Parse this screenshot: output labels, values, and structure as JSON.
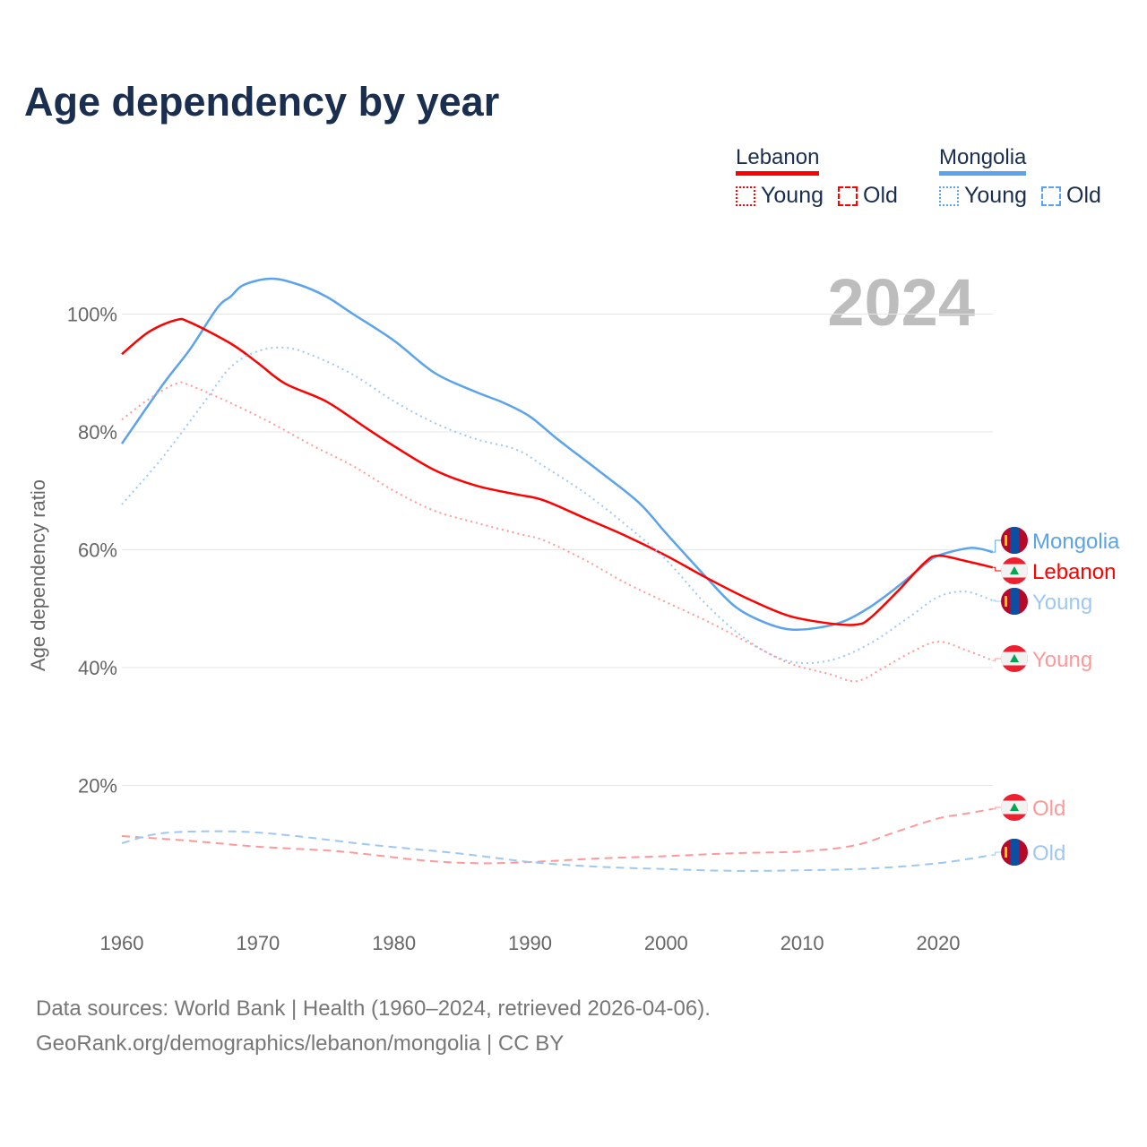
{
  "chart_data": {
    "type": "line",
    "title": "Age dependency by year",
    "xlabel": "",
    "ylabel": "Age dependency ratio",
    "xlim": [
      1960,
      2024
    ],
    "ylim": [
      0,
      110
    ],
    "yticks": [
      20,
      40,
      60,
      80,
      100
    ],
    "ytick_labels": [
      "20%",
      "40%",
      "60%",
      "80%",
      "100%"
    ],
    "xticks": [
      1960,
      1970,
      1980,
      1990,
      2000,
      2010,
      2020
    ],
    "xtick_labels": [
      "1960",
      "1970",
      "1980",
      "1990",
      "2000",
      "2010",
      "2020"
    ],
    "grid": true,
    "year_display": "2024",
    "legend": {
      "placement": "top-right",
      "groups": [
        {
          "country": "Lebanon",
          "color": "#ff0000",
          "items": [
            "Young",
            "Old"
          ]
        },
        {
          "country": "Mongolia",
          "color": "#5ba3ec",
          "items": [
            "Young",
            "Old"
          ]
        }
      ]
    },
    "series": [
      {
        "name": "Mongolia",
        "label": "Mongolia",
        "country": "Mongolia",
        "kind": "total",
        "color": "#5ba3ec",
        "years": [
          1960,
          1963,
          1965,
          1967,
          1968,
          1969,
          1971,
          1973,
          1975,
          1977,
          1980,
          1983,
          1986,
          1988,
          1990,
          1992,
          1995,
          1998,
          2000,
          2003,
          2005,
          2007,
          2009,
          2011,
          2013,
          2015,
          2017,
          2019,
          2020,
          2022,
          2023,
          2024
        ],
        "values": [
          78,
          88,
          94,
          101,
          103,
          105,
          106,
          105,
          103,
          100,
          95.5,
          90,
          86.8,
          85,
          82.6,
          78.8,
          73.5,
          68,
          62.8,
          55.2,
          50.5,
          47.9,
          46.5,
          46.7,
          47.8,
          50.3,
          53.7,
          57.5,
          59,
          60.2,
          60.2,
          59.6
        ]
      },
      {
        "name": "Lebanon",
        "label": "Lebanon",
        "country": "Lebanon",
        "kind": "total",
        "color": "#ff0000",
        "years": [
          1960,
          1962,
          1964,
          1965,
          1968,
          1970,
          1972,
          1975,
          1978,
          1980,
          1983,
          1986,
          1989,
          1991,
          1994,
          1997,
          2000,
          2003,
          2006,
          2009,
          2012,
          2014,
          2015,
          2017,
          2019,
          2020,
          2022,
          2024
        ],
        "values": [
          93.2,
          97,
          99,
          98.6,
          95,
          91.7,
          88.2,
          85.2,
          80.6,
          77.6,
          73.5,
          70.9,
          69.4,
          68.4,
          65.4,
          62.4,
          59,
          55.2,
          51.7,
          48.8,
          47.5,
          47.3,
          48.4,
          52.9,
          57.8,
          59,
          58.1,
          57
        ]
      },
      {
        "name": "Mongolia Young",
        "label": "Young",
        "country": "Mongolia",
        "kind": "young",
        "color": "#9ec8f2",
        "years": [
          1960,
          1963,
          1966,
          1968,
          1970,
          1972,
          1974,
          1977,
          1980,
          1983,
          1986,
          1989,
          1991,
          1994,
          1997,
          2000,
          2003,
          2006,
          2009,
          2012,
          2015,
          2018,
          2020,
          2022,
          2024
        ],
        "values": [
          67.7,
          75.7,
          84.9,
          91,
          93.7,
          94.3,
          93,
          89.7,
          85.2,
          81.5,
          78.8,
          77,
          74.2,
          69.7,
          64.3,
          58.3,
          50.6,
          44.6,
          41.1,
          41.2,
          44.1,
          48.8,
          52,
          52.9,
          51.4
        ]
      },
      {
        "name": "Lebanon Young",
        "label": "Young",
        "country": "Lebanon",
        "kind": "young",
        "color": "#ff9999",
        "years": [
          1960,
          1962,
          1964,
          1965,
          1968,
          1971,
          1974,
          1977,
          1980,
          1983,
          1986,
          1989,
          1991,
          1994,
          1997,
          2000,
          2003,
          2006,
          2009,
          2012,
          2014,
          2016,
          2018,
          2020,
          2022,
          2024
        ],
        "values": [
          82.1,
          85.6,
          88.2,
          87.9,
          84.9,
          81.5,
          77.7,
          74.2,
          70,
          66.6,
          64.6,
          62.8,
          61.6,
          58.3,
          54.4,
          51.1,
          47.9,
          44.3,
          40.8,
          38.9,
          37.7,
          40,
          42.6,
          44.4,
          43,
          41.2
        ]
      },
      {
        "name": "Lebanon Old",
        "label": "Old",
        "country": "Lebanon",
        "kind": "old",
        "color": "#ff9999",
        "years": [
          1960,
          1965,
          1970,
          1976,
          1982,
          1986,
          1990,
          1995,
          2000,
          2005,
          2010,
          2014,
          2017,
          2020,
          2022,
          2024
        ],
        "values": [
          11.4,
          10.6,
          9.6,
          8.8,
          7.3,
          6.8,
          7,
          7.6,
          8,
          8.5,
          8.8,
          9.9,
          12.2,
          14.4,
          15.2,
          16
        ]
      },
      {
        "name": "Mongolia Old",
        "label": "Old",
        "country": "Mongolia",
        "kind": "old",
        "color": "#9ec8f2",
        "years": [
          1960,
          1963,
          1968,
          1972,
          1978,
          1985,
          1990,
          1995,
          2000,
          2005,
          2010,
          2015,
          2020,
          2024
        ],
        "values": [
          10.2,
          11.9,
          12.2,
          11.6,
          10,
          8.4,
          7,
          6.2,
          5.8,
          5.5,
          5.6,
          5.9,
          6.8,
          8.2
        ]
      }
    ]
  },
  "footer": {
    "line1": "Data sources: World Bank | Health (1960–2024, retrieved 2026-04-06).",
    "line2": "GeoRank.org/demographics/lebanon/mongolia | CC BY"
  }
}
